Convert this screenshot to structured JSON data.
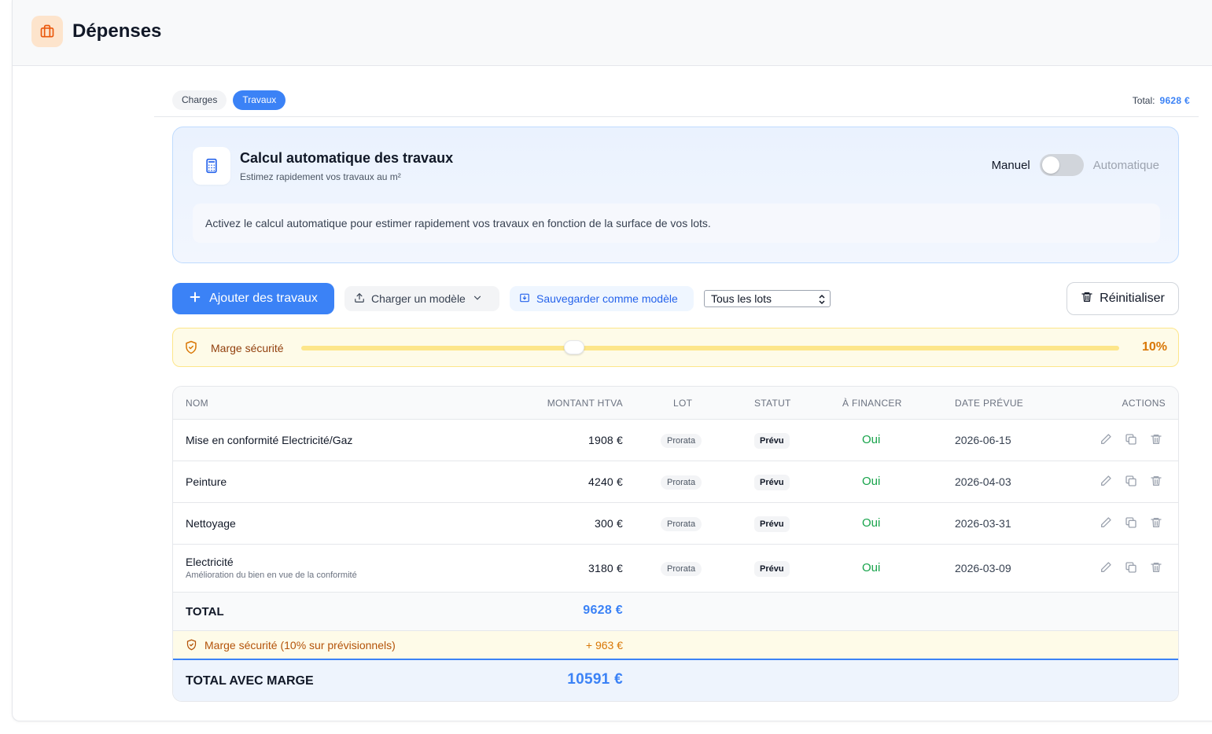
{
  "header": {
    "title": "Dépenses",
    "icon": "briefcase-icon",
    "icon_color": "#ea580c"
  },
  "tabs": [
    {
      "label": "Charges",
      "active": false
    },
    {
      "label": "Travaux",
      "active": true
    }
  ],
  "summary": {
    "total_label": "Total:",
    "total_value": "9628 €"
  },
  "calculator": {
    "title": "Calcul automatique des travaux",
    "subtitle": "Estimez rapidement vos travaux au m²",
    "mode_manual": "Manuel",
    "mode_auto": "Automatique",
    "auto_enabled": false,
    "info": "Activez le calcul automatique pour estimer rapidement vos travaux en fonction de la surface de vos lots."
  },
  "toolbar": {
    "add_label": "Ajouter des travaux",
    "load_label": "Charger un modèle",
    "save_label": "Sauvegarder comme modèle",
    "filter_value": "Tous les lots",
    "reset_label": "Réinitialiser"
  },
  "safety_margin": {
    "label": "Marge sécurité",
    "value_label": "10%",
    "value": 0.1
  },
  "table": {
    "headers": {
      "name": "NOM",
      "amount": "MONTANT HTVA",
      "lot": "LOT",
      "status": "STATUT",
      "finance": "À FINANCER",
      "date": "DATE PRÉVUE",
      "actions": "ACTIONS"
    },
    "rows": [
      {
        "name": "Mise en conformité Electricité/Gaz",
        "desc": "",
        "amount": "1908 €",
        "lot": "Prorata",
        "status": "Prévu",
        "finance": "Oui",
        "date": "2026-06-15"
      },
      {
        "name": "Peinture",
        "desc": "",
        "amount": "4240 €",
        "lot": "Prorata",
        "status": "Prévu",
        "finance": "Oui",
        "date": "2026-04-03"
      },
      {
        "name": "Nettoyage",
        "desc": "",
        "amount": "300 €",
        "lot": "Prorata",
        "status": "Prévu",
        "finance": "Oui",
        "date": "2026-03-31"
      },
      {
        "name": "Electricité",
        "desc": "Amélioration du bien en vue de la conformité",
        "amount": "3180 €",
        "lot": "Prorata",
        "status": "Prévu",
        "finance": "Oui",
        "date": "2026-03-09"
      }
    ],
    "total_label": "TOTAL",
    "total_value": "9628 €",
    "margin_label": "Marge sécurité (10% sur prévisionnels)",
    "margin_value": "+ 963 €",
    "grand_label": "TOTAL AVEC MARGE",
    "grand_value": "10591 €"
  },
  "colors": {
    "accent": "#3b82f6",
    "success": "#16a34a",
    "warning": "#d97706"
  }
}
